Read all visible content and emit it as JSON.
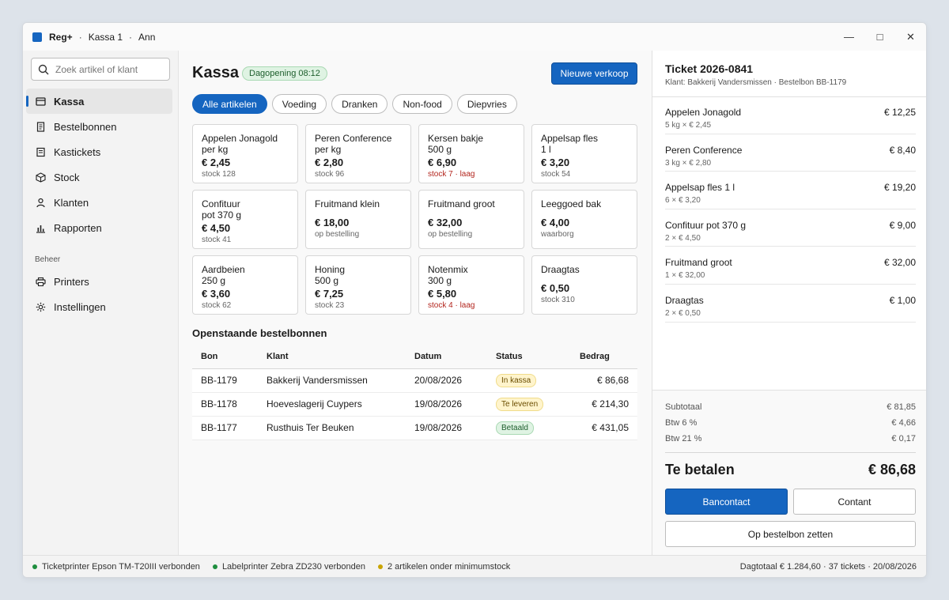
{
  "titlebar": {
    "app": "Reg+",
    "register": "Kassa 1",
    "user": "Ann",
    "minimize": "—",
    "maximize": "□",
    "close": "✕"
  },
  "sidebar": {
    "search_placeholder": "Zoek artikel of klant",
    "items": [
      {
        "label": "Kassa",
        "icon": "register-icon",
        "active": true
      },
      {
        "label": "Bestelbonnen",
        "icon": "order-form-icon"
      },
      {
        "label": "Kastickets",
        "icon": "receipt-icon"
      },
      {
        "label": "Stock",
        "icon": "box-icon"
      },
      {
        "label": "Klanten",
        "icon": "person-icon"
      },
      {
        "label": "Rapporten",
        "icon": "bar-chart-icon"
      }
    ],
    "section_label": "Beheer",
    "admin_items": [
      {
        "label": "Printers",
        "icon": "printer-icon"
      },
      {
        "label": "Instellingen",
        "icon": "gear-icon"
      }
    ]
  },
  "main": {
    "title": "Kassa",
    "day_badge": "Dagopening 08:12",
    "new_sale_button": "Nieuwe verkoop",
    "filters": [
      "Alle artikelen",
      "Voeding",
      "Dranken",
      "Non-food",
      "Diepvries"
    ],
    "products": [
      {
        "name": "Appelen Jonagold\nper kg",
        "price": "€ 2,45",
        "stock": "stock 128",
        "low": false
      },
      {
        "name": "Peren Conference\nper kg",
        "price": "€ 2,80",
        "stock": "stock 96",
        "low": false
      },
      {
        "name": "Kersen bakje\n500 g",
        "price": "€ 6,90",
        "stock": "stock 7 · laag",
        "low": true
      },
      {
        "name": "Appelsap fles\n1 l",
        "price": "€ 3,20",
        "stock": "stock 54",
        "low": false
      },
      {
        "name": "Confituur\npot 370 g",
        "price": "€ 4,50",
        "stock": "stock 41",
        "low": false
      },
      {
        "name": "Fruitmand klein",
        "price": "€ 18,00",
        "stock": "op bestelling",
        "low": false
      },
      {
        "name": "Fruitmand groot",
        "price": "€ 32,00",
        "stock": "op bestelling",
        "low": false
      },
      {
        "name": "Leeggoed bak",
        "price": "€ 4,00",
        "stock": "waarborg",
        "low": false
      },
      {
        "name": "Aardbeien\n250 g",
        "price": "€ 3,60",
        "stock": "stock 62",
        "low": false
      },
      {
        "name": "Honing\n500 g",
        "price": "€ 7,25",
        "stock": "stock 23",
        "low": false
      },
      {
        "name": "Notenmix\n300 g",
        "price": "€ 5,80",
        "stock": "stock 4 · laag",
        "low": true
      },
      {
        "name": "Draagtas",
        "price": "€ 0,50",
        "stock": "stock 310",
        "low": false
      }
    ],
    "orders_title": "Openstaande bestelbonnen",
    "orders_headers": [
      "Bon",
      "Klant",
      "Datum",
      "Status",
      "Bedrag"
    ],
    "orders": [
      {
        "bon": "BB-1179",
        "klant": "Bakkerij Vandersmissen",
        "datum": "20/08/2026",
        "status": "In kassa",
        "status_color": "#fff4cc",
        "bedrag": "€ 86,68"
      },
      {
        "bon": "BB-1178",
        "klant": "Hoeveslagerij Cuypers",
        "datum": "19/08/2026",
        "status": "Te leveren",
        "status_color": "#fff4cc",
        "bedrag": "€ 214,30"
      },
      {
        "bon": "BB-1177",
        "klant": "Rusthuis Ter Beuken",
        "datum": "19/08/2026",
        "status": "Betaald",
        "status_color": "#dff3e3",
        "bedrag": "€ 431,05"
      }
    ]
  },
  "ticket": {
    "title": "Ticket 2026-0841",
    "subtitle": "Klant: Bakkerij Vandersmissen · Bestelbon BB-1179",
    "lines": [
      {
        "name": "Appelen Jonagold",
        "detail": "5 kg × € 2,45",
        "amount": "€ 12,25"
      },
      {
        "name": "Peren Conference",
        "detail": "3 kg × € 2,80",
        "amount": "€ 8,40"
      },
      {
        "name": "Appelsap fles 1 l",
        "detail": "6 × € 3,20",
        "amount": "€ 19,20"
      },
      {
        "name": "Confituur pot 370 g",
        "detail": "2 × € 4,50",
        "amount": "€ 9,00"
      },
      {
        "name": "Fruitmand groot",
        "detail": "1 × € 32,00",
        "amount": "€ 32,00"
      },
      {
        "name": "Draagtas",
        "detail": "2 × € 0,50",
        "amount": "€ 1,00"
      }
    ],
    "subtotal_label": "Subtotaal",
    "subtotal": "€ 81,85",
    "vat6_label": "Btw 6 %",
    "vat6": "€ 4,66",
    "vat21_label": "Btw 21 %",
    "vat21": "€ 0,17",
    "total_label": "Te betalen",
    "total": "€ 86,68",
    "pay_card": "Bancontact",
    "pay_cash": "Contant",
    "to_order": "Op bestelbon zetten"
  },
  "statusbar": {
    "items": [
      {
        "text": "Ticketprinter Epson TM-T20III verbonden",
        "color": "#1e8e3e"
      },
      {
        "text": "Labelprinter Zebra ZD230 verbonden",
        "color": "#1e8e3e"
      },
      {
        "text": "2 artikelen onder minimumstock",
        "color": "#c9a400"
      }
    ],
    "right": "Dagtotaal € 1.284,60 · 37 tickets · 20/08/2026"
  },
  "colors": {
    "accent": "#1565c0",
    "low_stock": "#b3261e",
    "ok": "#1e8e3e",
    "warn": "#c9a400"
  }
}
